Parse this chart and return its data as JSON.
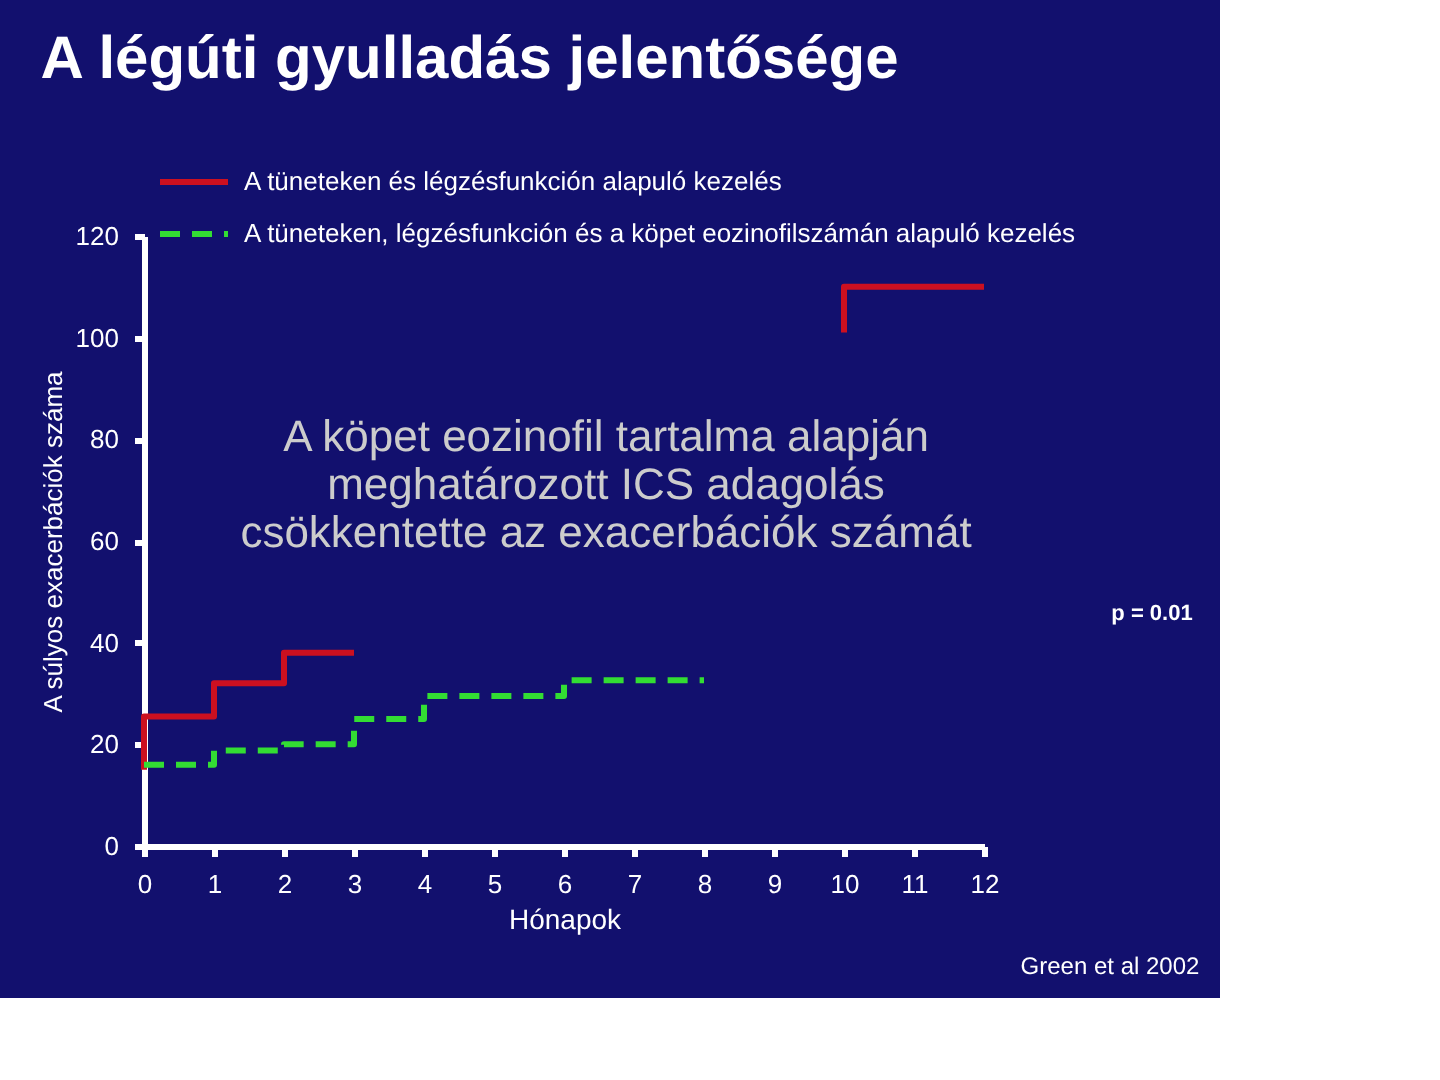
{
  "chart_data": {
    "type": "step",
    "title": "A légúti gyulladás jelentősége",
    "xlabel": "Hónapok",
    "ylabel": "A súlyos exacerbációk száma",
    "xlim": [
      0,
      12
    ],
    "xticks": [
      0,
      1,
      2,
      3,
      4,
      5,
      6,
      7,
      8,
      9,
      10,
      11,
      12
    ],
    "ylim": [
      0,
      120
    ],
    "yticks": [
      0,
      20,
      40,
      60,
      80,
      100,
      120
    ],
    "series": [
      {
        "name": "A tüneteken és légzésfunkción alapuló kezelés",
        "color": "#cc1020",
        "line_style": "solid",
        "x": [
          0,
          0,
          1,
          2,
          3
        ],
        "values": [
          15,
          25.5,
          32,
          38,
          38
        ]
      },
      {
        "color": "#cc1020",
        "line_style": "solid",
        "x": [
          10,
          10,
          12
        ],
        "values": [
          101,
          110,
          110
        ]
      },
      {
        "name": "A tüneteken, légzésfunkción és a köpet eozinofilszámán alapuló kezelés",
        "color": "#33dd33",
        "line_style": "dashed",
        "x": [
          0,
          1,
          2,
          3,
          4,
          6,
          8
        ],
        "values": [
          16,
          18.8,
          20,
          25,
          29.5,
          32.6,
          32.6
        ]
      }
    ],
    "legend": "top",
    "grid": false,
    "annotations": [
      "A köpet eozinofil tartalma alapján\nmeghatározott ICS adagolás\ncsökkentette az exacerbációk számát",
      "p = 0.01",
      "Green et al 2002"
    ]
  }
}
